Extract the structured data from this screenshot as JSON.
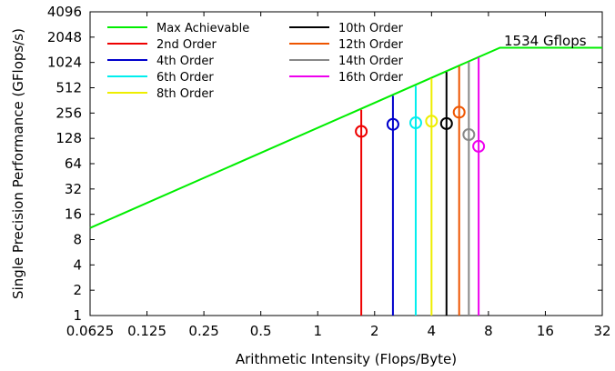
{
  "chart_data": {
    "type": "line",
    "xlabel": "Arithmetic Intensity (Flops/Byte)",
    "ylabel": "Single Precision Performance (GFlops/s)",
    "x_scale": "log2",
    "y_scale": "log2",
    "xlim": [
      0.0625,
      32
    ],
    "ylim": [
      1,
      4096
    ],
    "x_ticks": [
      "0.0625",
      "0.125",
      "0.25",
      "0.5",
      "1",
      "2",
      "4",
      "8",
      "16",
      "32"
    ],
    "y_ticks": [
      "1",
      "2",
      "4",
      "8",
      "16",
      "32",
      "64",
      "128",
      "256",
      "512",
      "1024",
      "2048",
      "4096"
    ],
    "grid": false,
    "legend_position": "top-left",
    "roofline": {
      "name": "Max Achievable",
      "color": "#00ee00",
      "points": [
        [
          0.0625,
          11
        ],
        [
          9.2,
          1534
        ],
        [
          32,
          1534
        ]
      ]
    },
    "annotation": "1534 Gflops",
    "series": [
      {
        "name": "2nd Order",
        "color": "#ee0000",
        "x": 1.7,
        "achieved": 155,
        "bound": 280
      },
      {
        "name": "4th Order",
        "color": "#0000cc",
        "x": 2.5,
        "achieved": 188,
        "bound": 410
      },
      {
        "name": "6th Order",
        "color": "#00eeee",
        "x": 3.3,
        "achieved": 196,
        "bound": 540
      },
      {
        "name": "8th Order",
        "color": "#eeee00",
        "x": 4.0,
        "achieved": 205,
        "bound": 660
      },
      {
        "name": "10th Order",
        "color": "#000000",
        "x": 4.8,
        "achieved": 192,
        "bound": 790
      },
      {
        "name": "12th Order",
        "color": "#ee5500",
        "x": 5.6,
        "achieved": 262,
        "bound": 920
      },
      {
        "name": "14th Order",
        "color": "#888888",
        "x": 6.3,
        "achieved": 142,
        "bound": 1040
      },
      {
        "name": "16th Order",
        "color": "#ee00ee",
        "x": 7.1,
        "achieved": 103,
        "bound": 1170
      }
    ]
  }
}
